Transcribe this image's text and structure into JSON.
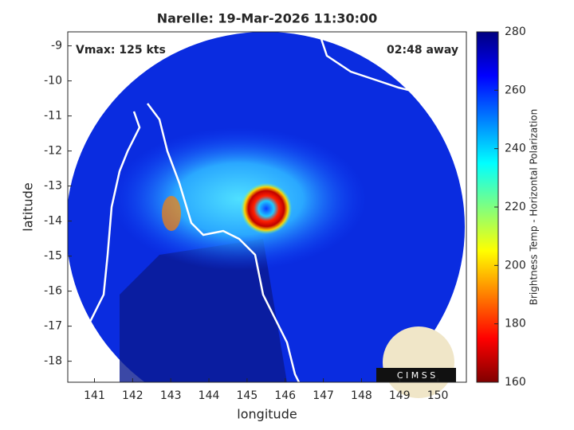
{
  "chart_data": {
    "type": "image",
    "title": "Narelle: 19-Mar-2026 11:30:00",
    "annotations": [
      "Vmax: 125 kts",
      "02:48 away"
    ],
    "xlabel": "longitude",
    "ylabel": "latitude",
    "xlim": [
      140.3,
      150.75
    ],
    "xticks": [
      141,
      142,
      143,
      144,
      145,
      146,
      147,
      148,
      149,
      150
    ],
    "ylim": [
      -18.6,
      -8.6
    ],
    "yticks": [
      -9,
      -10,
      -11,
      -12,
      -13,
      -14,
      -15,
      -16,
      -17,
      -18
    ],
    "colorbar": {
      "label": "Brightness Temp - Horizontal Polarization",
      "lim": [
        160,
        280
      ],
      "ticks": [
        160,
        180,
        200,
        220,
        240,
        260,
        280
      ]
    },
    "logo": "C I M S S"
  }
}
